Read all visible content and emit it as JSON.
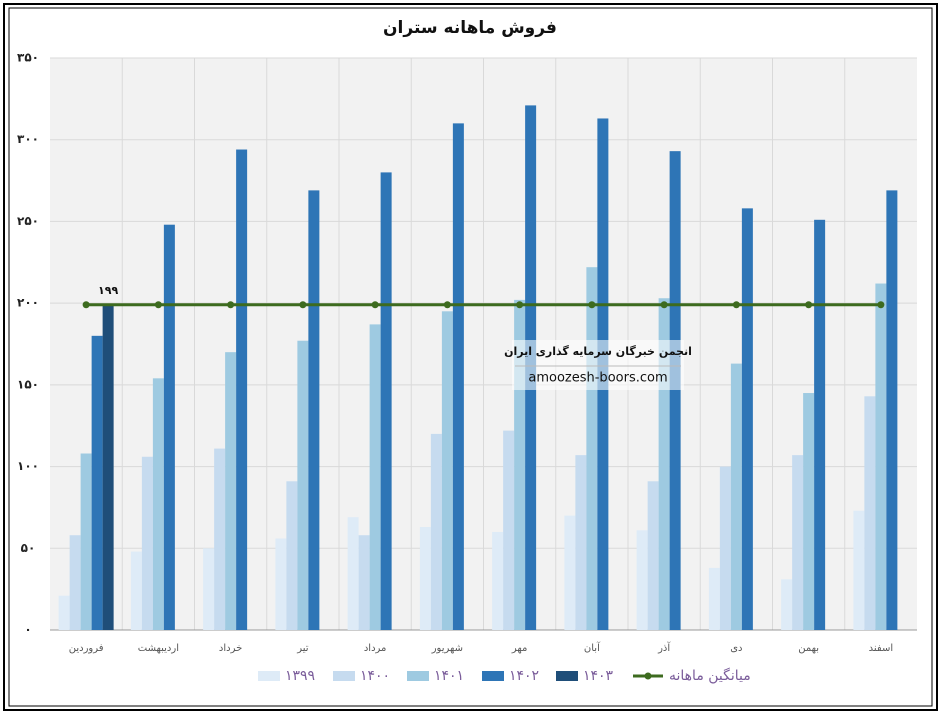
{
  "chart_data": {
    "type": "bar",
    "title": "فروش ماهانه ستران",
    "categories": [
      "فروردین",
      "اردیبهشت",
      "خرداد",
      "تیر",
      "مرداد",
      "شهریور",
      "مهر",
      "آبان",
      "آذر",
      "دی",
      "بهمن",
      "اسفند"
    ],
    "series": [
      {
        "name": "۱۳۹۹",
        "color": "#deebf7",
        "values": [
          21,
          48,
          50,
          56,
          69,
          63,
          60,
          70,
          61,
          38,
          31,
          73
        ]
      },
      {
        "name": "۱۴۰۰",
        "color": "#c6dbef",
        "values": [
          58,
          106,
          111,
          91,
          58,
          120,
          122,
          107,
          91,
          100,
          107,
          143
        ]
      },
      {
        "name": "۱۴۰۱",
        "color": "#9ecae1",
        "values": [
          108,
          154,
          170,
          177,
          187,
          195,
          202,
          222,
          203,
          163,
          145,
          212
        ]
      },
      {
        "name": "۱۴۰۲",
        "color": "#2e75b6",
        "values": [
          180,
          248,
          294,
          269,
          280,
          310,
          321,
          313,
          293,
          258,
          251,
          269
        ]
      },
      {
        "name": "۱۴۰۳",
        "color": "#1f4e79",
        "values": [
          199,
          null,
          null,
          null,
          null,
          null,
          null,
          null,
          null,
          null,
          null,
          null
        ],
        "value_labels": [
          "۱۹۹",
          null,
          null,
          null,
          null,
          null,
          null,
          null,
          null,
          null,
          null,
          null
        ]
      },
      {
        "name": "میانگین ماهانه",
        "color": "#3d6b1f",
        "type": "line",
        "values": [
          199,
          199,
          199,
          199,
          199,
          199,
          199,
          199,
          199,
          199,
          199,
          199
        ]
      }
    ],
    "ylim": [
      0,
      350
    ],
    "yticks": [
      {
        "value": 0,
        "label": "۰"
      },
      {
        "value": 50,
        "label": "۵۰"
      },
      {
        "value": 100,
        "label": "۱۰۰"
      },
      {
        "value": 150,
        "label": "۱۵۰"
      },
      {
        "value": 200,
        "label": "۲۰۰"
      },
      {
        "value": 250,
        "label": "۲۵۰"
      },
      {
        "value": 300,
        "label": "۳۰۰"
      },
      {
        "value": 350,
        "label": "۳۵۰"
      }
    ],
    "grid": true,
    "legend": "bottom",
    "annotations": [
      "انجمن خبرگان سرمایه گذاری ایران",
      "amoozesh-boors.com"
    ]
  }
}
